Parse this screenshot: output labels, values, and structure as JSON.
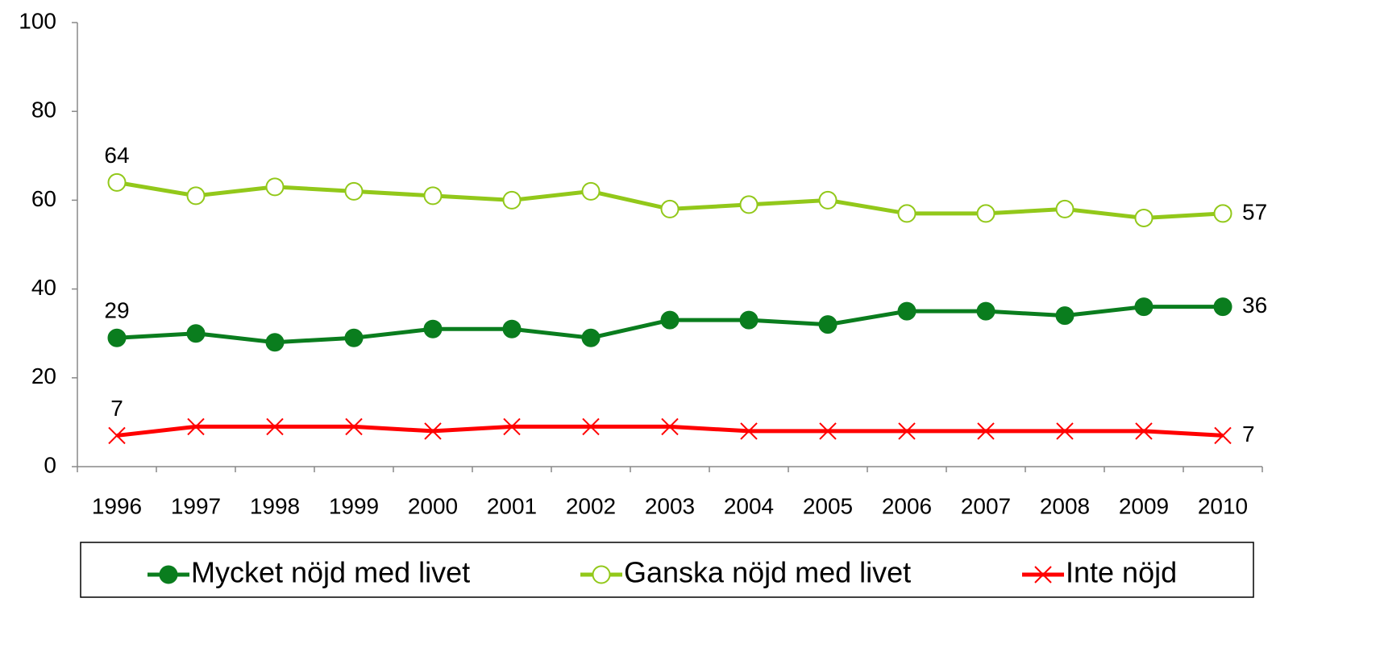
{
  "chart_data": {
    "type": "line",
    "categories": [
      "1996",
      "1997",
      "1998",
      "1999",
      "2000",
      "2001",
      "2002",
      "2003",
      "2004",
      "2005",
      "2006",
      "2007",
      "2008",
      "2009",
      "2010"
    ],
    "series": [
      {
        "name": "Mycket nöjd med livet",
        "color": "#0a7d1e",
        "marker": "filled-circle",
        "values": [
          29,
          30,
          28,
          29,
          31,
          31,
          29,
          33,
          33,
          32,
          35,
          35,
          34,
          36,
          36
        ]
      },
      {
        "name": "Ganska nöjd med livet",
        "color": "#92c81a",
        "marker": "hollow-circle",
        "values": [
          64,
          61,
          63,
          62,
          61,
          60,
          62,
          58,
          59,
          60,
          57,
          57,
          58,
          56,
          57
        ]
      },
      {
        "name": "Inte nöjd",
        "color": "#ff0000",
        "marker": "x",
        "values": [
          7,
          9,
          9,
          9,
          8,
          9,
          9,
          9,
          8,
          8,
          8,
          8,
          8,
          8,
          7
        ]
      }
    ],
    "ylim": [
      0,
      100
    ],
    "yticks": [
      0,
      20,
      40,
      60,
      80,
      100
    ],
    "grid": false,
    "legend": "bottom"
  }
}
